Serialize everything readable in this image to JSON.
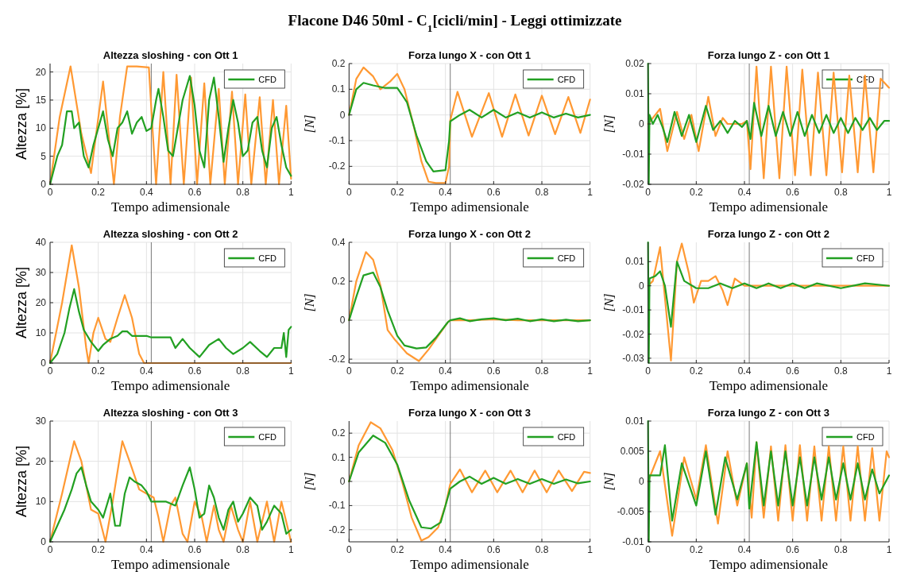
{
  "chart_data": [
    {
      "type": "line",
      "title": "Altezza sloshing - con Ott 1",
      "xlabel": "Tempo adimensionale",
      "ylabel": "Altezza [%]",
      "annotations": [
        "Flacone D46 50ml - C$_{1}$[cicli/min] - Leggi ottimizzate"
      ],
      "xlim": [
        0,
        1
      ],
      "xticks": [
        0,
        0.2,
        0.4,
        0.6,
        0.8,
        1
      ],
      "ylim": [
        0,
        21.5
      ],
      "yticks": [
        0,
        5,
        10,
        15,
        20
      ],
      "grid": true,
      "legend": "top right",
      "ref_lines": [
        {
          "axis": "x",
          "value": 0.42,
          "color": "#555555"
        }
      ],
      "series": [
        {
          "color": "#ff9933",
          "x": [
            0,
            0.04,
            0.085,
            0.13,
            0.17,
            0.22,
            0.265,
            0.29,
            0.32,
            0.36,
            0.41,
            0.425,
            0.44,
            0.47,
            0.5,
            0.525,
            0.555,
            0.585,
            0.61,
            0.64,
            0.665,
            0.7,
            0.725,
            0.755,
            0.78,
            0.81,
            0.835,
            0.87,
            0.895,
            0.925,
            0.95,
            0.98,
            1
          ],
          "values": [
            0,
            12,
            21,
            9,
            2,
            18.3,
            0,
            12,
            21,
            21,
            20.8,
            10,
            0,
            20,
            0,
            19.5,
            0,
            19,
            0,
            18,
            0,
            17,
            0,
            16.5,
            0,
            16,
            0,
            15.5,
            0,
            15,
            0,
            14,
            1
          ]
        },
        {
          "name": "CFD",
          "color": "#22a022",
          "x": [
            0,
            0.03,
            0.05,
            0.07,
            0.09,
            0.1,
            0.12,
            0.14,
            0.16,
            0.18,
            0.2,
            0.22,
            0.24,
            0.26,
            0.28,
            0.3,
            0.32,
            0.34,
            0.36,
            0.38,
            0.4,
            0.42,
            0.44,
            0.45,
            0.47,
            0.49,
            0.51,
            0.53,
            0.55,
            0.58,
            0.6,
            0.62,
            0.64,
            0.66,
            0.68,
            0.7,
            0.72,
            0.74,
            0.76,
            0.78,
            0.8,
            0.82,
            0.84,
            0.86,
            0.88,
            0.9,
            0.92,
            0.94,
            0.96,
            0.98,
            1
          ],
          "values": [
            0,
            5,
            7,
            13,
            13,
            10,
            11,
            5,
            3,
            7,
            10,
            13,
            8,
            5,
            10,
            11,
            13,
            9,
            11,
            12,
            9.5,
            10,
            15,
            17,
            12,
            6,
            5,
            10,
            15,
            19.3,
            14,
            6,
            3,
            15,
            19,
            12,
            4,
            10,
            15,
            11,
            5,
            6,
            11,
            12,
            6,
            3,
            10,
            12,
            7,
            3,
            1.5
          ]
        }
      ]
    },
    {
      "type": "line",
      "title": "Forza lungo X - con Ott 1",
      "xlabel": "Tempo adimensionale",
      "ylabel": "[N]",
      "xlim": [
        0,
        1
      ],
      "xticks": [
        0,
        0.2,
        0.4,
        0.6,
        0.8,
        1
      ],
      "ylim": [
        -0.27,
        0.2
      ],
      "yticks": [
        -0.2,
        -0.1,
        0,
        0.1,
        0.2
      ],
      "grid": true,
      "legend": "top right",
      "ref_lines": [
        {
          "axis": "x",
          "value": 0.42,
          "color": "#555555"
        }
      ],
      "series": [
        {
          "color": "#ff9933",
          "x": [
            0,
            0.03,
            0.06,
            0.1,
            0.13,
            0.17,
            0.2,
            0.23,
            0.27,
            0.3,
            0.33,
            0.36,
            0.4,
            0.415,
            0.42,
            0.45,
            0.51,
            0.58,
            0.635,
            0.69,
            0.745,
            0.8,
            0.855,
            0.91,
            0.96,
            1
          ],
          "values": [
            0,
            0.14,
            0.185,
            0.15,
            0.1,
            0.13,
            0.16,
            0.1,
            -0.05,
            -0.18,
            -0.26,
            -0.265,
            -0.265,
            -0.2,
            -0.02,
            0.09,
            -0.085,
            0.085,
            -0.085,
            0.08,
            -0.08,
            0.075,
            -0.075,
            0.07,
            -0.07,
            0.06
          ]
        },
        {
          "name": "CFD",
          "color": "#22a022",
          "x": [
            0,
            0.03,
            0.06,
            0.1,
            0.15,
            0.2,
            0.24,
            0.28,
            0.32,
            0.35,
            0.4,
            0.415,
            0.42,
            0.46,
            0.5,
            0.55,
            0.6,
            0.65,
            0.7,
            0.75,
            0.8,
            0.85,
            0.9,
            0.95,
            1
          ],
          "values": [
            0,
            0.1,
            0.125,
            0.115,
            0.105,
            0.105,
            0.05,
            -0.08,
            -0.18,
            -0.22,
            -0.215,
            -0.1,
            -0.025,
            0,
            0.02,
            -0.01,
            0.02,
            -0.01,
            0.01,
            -0.01,
            0.01,
            -0.01,
            0.005,
            -0.01,
            0
          ]
        }
      ]
    },
    {
      "type": "line",
      "title": "Forza lungo Z - con Ott 1",
      "xlabel": "Tempo adimensionale",
      "ylabel": "[N]",
      "xlim": [
        0,
        1
      ],
      "xticks": [
        0,
        0.2,
        0.4,
        0.6,
        0.8,
        1
      ],
      "ylim": [
        -0.02,
        0.02
      ],
      "yticks": [
        -0.02,
        -0.01,
        0,
        0.01,
        0.02
      ],
      "grid": true,
      "legend": "top right",
      "ref_lines": [
        {
          "axis": "x",
          "value": 0.42,
          "color": "#555555"
        }
      ],
      "series": [
        {
          "color": "#ff9933",
          "x": [
            0,
            0.02,
            0.05,
            0.08,
            0.12,
            0.15,
            0.18,
            0.21,
            0.25,
            0.28,
            0.31,
            0.33,
            0.36,
            0.39,
            0.41,
            0.425,
            0.45,
            0.48,
            0.51,
            0.545,
            0.575,
            0.61,
            0.64,
            0.675,
            0.705,
            0.74,
            0.77,
            0.805,
            0.835,
            0.87,
            0.9,
            0.935,
            0.965,
            1
          ],
          "values": [
            0,
            0.002,
            0.005,
            -0.009,
            0.004,
            -0.005,
            0.003,
            -0.009,
            0.009,
            -0.004,
            0.002,
            0,
            0,
            0,
            0.001,
            -0.015,
            0.019,
            -0.018,
            0.019,
            -0.018,
            0.019,
            -0.017,
            0.018,
            -0.017,
            0.017,
            -0.017,
            0.017,
            -0.016,
            0.016,
            -0.016,
            0.016,
            -0.016,
            0.015,
            0.012
          ]
        },
        {
          "name": "CFD",
          "color": "#22a022",
          "x": [
            0,
            0.003,
            0.006,
            0.02,
            0.04,
            0.06,
            0.08,
            0.11,
            0.14,
            0.17,
            0.2,
            0.24,
            0.27,
            0.3,
            0.33,
            0.36,
            0.39,
            0.41,
            0.425,
            0.44,
            0.47,
            0.5,
            0.53,
            0.56,
            0.59,
            0.62,
            0.65,
            0.68,
            0.71,
            0.74,
            0.77,
            0.8,
            0.83,
            0.86,
            0.89,
            0.92,
            0.95,
            0.98,
            1
          ],
          "values": [
            0.02,
            -0.02,
            0.003,
            0,
            0.003,
            -0.001,
            -0.006,
            0.004,
            -0.004,
            0.003,
            -0.006,
            0.006,
            -0.002,
            0.001,
            -0.003,
            0.001,
            -0.001,
            0.001,
            -0.005,
            0.007,
            -0.004,
            0.006,
            -0.004,
            0.004,
            -0.004,
            0.004,
            -0.004,
            0.003,
            -0.003,
            0.003,
            -0.003,
            0.002,
            -0.003,
            0.002,
            -0.002,
            0.002,
            -0.002,
            0.001,
            0.001
          ]
        }
      ]
    },
    {
      "type": "line",
      "title": "Altezza sloshing - con Ott 2",
      "xlabel": "Tempo adimensionale",
      "ylabel": "Altezza [%]",
      "xlim": [
        0,
        1
      ],
      "xticks": [
        0,
        0.2,
        0.4,
        0.6,
        0.8,
        1
      ],
      "ylim": [
        0,
        40
      ],
      "yticks": [
        0,
        10,
        20,
        30,
        40
      ],
      "grid": true,
      "legend": "top right",
      "ref_lines": [
        {
          "axis": "x",
          "value": 0.42,
          "color": "#555555"
        }
      ],
      "series": [
        {
          "color": "#ff9933",
          "x": [
            0,
            0.05,
            0.09,
            0.12,
            0.15,
            0.16,
            0.18,
            0.2,
            0.23,
            0.25,
            0.28,
            0.31,
            0.34,
            0.37,
            0.39,
            0.42,
            1
          ],
          "values": [
            0,
            20,
            39,
            25,
            5,
            0,
            10,
            15,
            8,
            7,
            15,
            22.5,
            15,
            3,
            0,
            0,
            0
          ]
        },
        {
          "name": "CFD",
          "color": "#22a022",
          "x": [
            0,
            0.03,
            0.06,
            0.08,
            0.1,
            0.12,
            0.14,
            0.17,
            0.2,
            0.22,
            0.25,
            0.28,
            0.3,
            0.32,
            0.34,
            0.4,
            0.42,
            0.5,
            0.52,
            0.55,
            0.58,
            0.62,
            0.66,
            0.7,
            0.73,
            0.76,
            0.8,
            0.83,
            0.87,
            0.9,
            0.93,
            0.96,
            0.97,
            0.98,
            0.99,
            1
          ],
          "values": [
            0,
            3,
            10,
            18,
            24.5,
            17,
            11,
            7,
            4,
            6,
            8,
            9,
            10.5,
            10.5,
            9,
            9,
            8.5,
            8.5,
            5,
            8,
            5,
            2,
            6,
            8,
            5,
            3,
            5,
            7,
            4,
            2,
            5,
            5,
            10,
            2,
            11,
            12
          ]
        }
      ]
    },
    {
      "type": "line",
      "title": "Forza lungo X - con Ott 2",
      "xlabel": "Tempo adimensionale",
      "ylabel": "[N]",
      "xlim": [
        0,
        1
      ],
      "xticks": [
        0,
        0.2,
        0.4,
        0.6,
        0.8,
        1
      ],
      "ylim": [
        -0.22,
        0.4
      ],
      "yticks": [
        -0.2,
        0,
        0.2,
        0.4
      ],
      "grid": true,
      "legend": "top right",
      "ref_lines": [
        {
          "axis": "x",
          "value": 0.42,
          "color": "#555555"
        }
      ],
      "series": [
        {
          "color": "#ff9933",
          "x": [
            0,
            0.03,
            0.07,
            0.1,
            0.13,
            0.16,
            0.19,
            0.24,
            0.29,
            0.33,
            0.37,
            0.41,
            0.42,
            0.5,
            0.6,
            0.7,
            1
          ],
          "values": [
            0,
            0.2,
            0.35,
            0.31,
            0.18,
            -0.05,
            -0.1,
            -0.17,
            -0.21,
            -0.15,
            -0.08,
            -0.01,
            0,
            0,
            0.005,
            0,
            0
          ]
        },
        {
          "name": "CFD",
          "color": "#22a022",
          "x": [
            0,
            0.03,
            0.06,
            0.1,
            0.13,
            0.16,
            0.2,
            0.23,
            0.28,
            0.32,
            0.36,
            0.41,
            0.42,
            0.46,
            0.5,
            0.55,
            0.6,
            0.65,
            0.7,
            0.75,
            0.8,
            0.85,
            0.9,
            0.95,
            1
          ],
          "values": [
            0,
            0.12,
            0.23,
            0.245,
            0.17,
            0.05,
            -0.08,
            -0.13,
            -0.145,
            -0.14,
            -0.09,
            -0.01,
            0,
            0.01,
            -0.005,
            0.005,
            0.01,
            0,
            0.008,
            -0.005,
            0.005,
            -0.005,
            0.003,
            -0.005,
            0
          ]
        }
      ]
    },
    {
      "type": "line",
      "title": "Forza lungo Z - con Ott 2",
      "xlabel": "Tempo adimensionale",
      "ylabel": "[N]",
      "xlim": [
        0,
        1
      ],
      "xticks": [
        0,
        0.2,
        0.4,
        0.6,
        0.8,
        1
      ],
      "ylim": [
        -0.032,
        0.018
      ],
      "yticks": [
        -0.03,
        -0.02,
        -0.01,
        0,
        0.01
      ],
      "grid": true,
      "legend": "top right",
      "ref_lines": [
        {
          "axis": "x",
          "value": 0.42,
          "color": "#555555"
        }
      ],
      "series": [
        {
          "color": "#ff9933",
          "x": [
            0,
            0.02,
            0.05,
            0.07,
            0.095,
            0.12,
            0.14,
            0.17,
            0.19,
            0.22,
            0.25,
            0.28,
            0.31,
            0.33,
            0.36,
            0.4,
            0.42,
            1
          ],
          "values": [
            0,
            0.002,
            0.016,
            -0.005,
            -0.031,
            0.01,
            0.0175,
            0.005,
            -0.007,
            0.002,
            0.002,
            0.004,
            -0.002,
            -0.008,
            0.003,
            0,
            0,
            0
          ]
        },
        {
          "name": "CFD",
          "color": "#22a022",
          "x": [
            0,
            0.003,
            0.006,
            0.03,
            0.05,
            0.07,
            0.095,
            0.12,
            0.15,
            0.2,
            0.25,
            0.3,
            0.35,
            0.4,
            0.45,
            0.5,
            0.55,
            0.6,
            0.65,
            0.7,
            0.8,
            0.9,
            1
          ],
          "values": [
            0.018,
            -0.032,
            0.003,
            0.004,
            0.006,
            0,
            -0.017,
            0.01,
            0.002,
            -0.001,
            -0.001,
            0.001,
            -0.001,
            0.001,
            -0.001,
            0.001,
            -0.001,
            0.001,
            -0.001,
            0.001,
            -0.001,
            0.001,
            0
          ]
        }
      ]
    },
    {
      "type": "line",
      "title": "Altezza sloshing - con Ott 3",
      "xlabel": "Tempo adimensionale",
      "ylabel": "Altezza [%]",
      "xlim": [
        0,
        1
      ],
      "xticks": [
        0,
        0.2,
        0.4,
        0.6,
        0.8,
        1
      ],
      "ylim": [
        0,
        30
      ],
      "yticks": [
        0,
        10,
        20,
        30
      ],
      "grid": true,
      "legend": "top right",
      "ref_lines": [
        {
          "axis": "x",
          "value": 0.42,
          "color": "#555555"
        }
      ],
      "series": [
        {
          "color": "#ff9933",
          "x": [
            0,
            0.05,
            0.1,
            0.13,
            0.17,
            0.2,
            0.23,
            0.26,
            0.3,
            0.33,
            0.37,
            0.4,
            0.43,
            0.45,
            0.47,
            0.5,
            0.52,
            0.55,
            0.57,
            0.6,
            0.63,
            0.65,
            0.68,
            0.7,
            0.72,
            0.75,
            0.78,
            0.8,
            0.83,
            0.86,
            0.9,
            0.93,
            0.96,
            1
          ],
          "values": [
            0,
            12,
            25,
            20,
            8,
            7,
            0,
            10,
            25,
            20,
            13,
            12,
            11,
            6,
            0,
            9,
            11,
            2,
            0,
            10,
            6,
            0,
            9,
            3,
            0,
            9,
            3,
            0,
            10,
            0,
            10,
            0,
            10,
            0
          ]
        },
        {
          "name": "CFD",
          "color": "#22a022",
          "x": [
            0,
            0.03,
            0.06,
            0.09,
            0.11,
            0.13,
            0.15,
            0.17,
            0.2,
            0.22,
            0.25,
            0.27,
            0.29,
            0.31,
            0.33,
            0.35,
            0.38,
            0.4,
            0.42,
            0.48,
            0.52,
            0.55,
            0.58,
            0.6,
            0.62,
            0.64,
            0.66,
            0.68,
            0.7,
            0.72,
            0.74,
            0.76,
            0.78,
            0.8,
            0.83,
            0.86,
            0.88,
            0.9,
            0.93,
            0.96,
            0.98,
            1
          ],
          "values": [
            0,
            4,
            8,
            13,
            17,
            18.5,
            14,
            10,
            8,
            6,
            12,
            4,
            4,
            12,
            16,
            15,
            14,
            12.5,
            10,
            10,
            9,
            14,
            18.5,
            13,
            6,
            7,
            14,
            11,
            6,
            3,
            8,
            10,
            5,
            7,
            11,
            9,
            3,
            5,
            9,
            7,
            2,
            3
          ]
        }
      ]
    },
    {
      "type": "line",
      "title": "Forza lungo X - con Ott 3",
      "xlabel": "Tempo adimensionale",
      "ylabel": "[N]",
      "xlim": [
        0,
        1
      ],
      "xticks": [
        0,
        0.2,
        0.4,
        0.6,
        0.8,
        1
      ],
      "ylim": [
        -0.25,
        0.25
      ],
      "yticks": [
        -0.2,
        -0.1,
        0,
        0.1,
        0.2
      ],
      "grid": true,
      "legend": "top right",
      "ref_lines": [
        {
          "axis": "x",
          "value": 0.42,
          "color": "#555555"
        }
      ],
      "series": [
        {
          "color": "#ff9933",
          "x": [
            0,
            0.04,
            0.09,
            0.13,
            0.18,
            0.22,
            0.26,
            0.3,
            0.33,
            0.37,
            0.4,
            0.42,
            0.46,
            0.51,
            0.565,
            0.615,
            0.67,
            0.72,
            0.77,
            0.82,
            0.87,
            0.925,
            0.975,
            1
          ],
          "values": [
            0,
            0.15,
            0.245,
            0.22,
            0.13,
            0,
            -0.15,
            -0.245,
            -0.23,
            -0.19,
            -0.1,
            -0.01,
            0.05,
            -0.045,
            0.045,
            -0.045,
            0.045,
            -0.045,
            0.045,
            -0.045,
            0.045,
            -0.04,
            0.04,
            0.035
          ]
        },
        {
          "name": "CFD",
          "color": "#22a022",
          "x": [
            0,
            0.04,
            0.1,
            0.15,
            0.2,
            0.25,
            0.3,
            0.34,
            0.38,
            0.42,
            0.46,
            0.5,
            0.55,
            0.6,
            0.65,
            0.7,
            0.75,
            0.8,
            0.85,
            0.9,
            0.95,
            1
          ],
          "values": [
            0,
            0.12,
            0.19,
            0.16,
            0.07,
            -0.08,
            -0.19,
            -0.195,
            -0.17,
            -0.03,
            0,
            0.02,
            -0.01,
            0.015,
            -0.01,
            0.01,
            -0.01,
            0.01,
            -0.01,
            0.008,
            -0.008,
            0
          ]
        }
      ]
    },
    {
      "type": "line",
      "title": "Forza lungo Z - con Ott 3",
      "xlabel": "Tempo adimensionale",
      "ylabel": "[N]",
      "xlim": [
        0,
        1
      ],
      "xticks": [
        0,
        0.2,
        0.4,
        0.6,
        0.8,
        1
      ],
      "ylim": [
        -0.01,
        0.01
      ],
      "yticks": [
        -0.01,
        -0.005,
        0,
        0.005,
        0.01
      ],
      "grid": true,
      "legend": "top right",
      "ref_lines": [
        {
          "axis": "x",
          "value": 0.42,
          "color": "#555555"
        }
      ],
      "series": [
        {
          "color": "#ff9933",
          "x": [
            0,
            0.05,
            0.1,
            0.15,
            0.2,
            0.24,
            0.29,
            0.33,
            0.37,
            0.41,
            0.43,
            0.45,
            0.48,
            0.51,
            0.54,
            0.57,
            0.6,
            0.63,
            0.66,
            0.69,
            0.72,
            0.75,
            0.78,
            0.81,
            0.84,
            0.87,
            0.9,
            0.93,
            0.96,
            0.99,
            1
          ],
          "values": [
            0,
            0.005,
            -0.009,
            0.004,
            -0.003,
            0.006,
            -0.007,
            0.005,
            -0.004,
            0.003,
            -0.006,
            0.0065,
            -0.006,
            0.0058,
            -0.0065,
            0.006,
            -0.0065,
            0.006,
            -0.0065,
            0.0058,
            -0.0065,
            0.0058,
            -0.0065,
            0.0058,
            -0.0065,
            0.0058,
            -0.0065,
            0.0055,
            -0.0065,
            0.005,
            0.004
          ]
        },
        {
          "name": "CFD",
          "color": "#22a022",
          "x": [
            0,
            0.003,
            0.006,
            0.05,
            0.07,
            0.1,
            0.14,
            0.2,
            0.24,
            0.28,
            0.32,
            0.37,
            0.41,
            0.42,
            0.45,
            0.48,
            0.51,
            0.54,
            0.57,
            0.6,
            0.63,
            0.66,
            0.69,
            0.72,
            0.75,
            0.78,
            0.81,
            0.84,
            0.87,
            0.9,
            0.93,
            0.96,
            1
          ],
          "values": [
            0.01,
            -0.01,
            0.001,
            0.001,
            0.006,
            -0.0065,
            0.003,
            -0.004,
            0.005,
            -0.0055,
            0.004,
            -0.003,
            0.003,
            -0.0045,
            0.0065,
            -0.004,
            0.005,
            -0.004,
            0.005,
            -0.004,
            0.004,
            -0.004,
            0.004,
            -0.003,
            0.004,
            -0.003,
            0.003,
            -0.003,
            0.003,
            -0.003,
            0.002,
            -0.002,
            0.001
          ]
        }
      ]
    }
  ]
}
